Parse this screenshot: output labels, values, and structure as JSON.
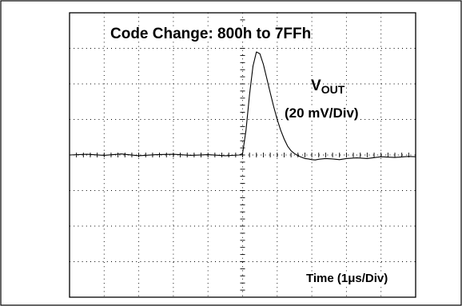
{
  "chart_data": {
    "type": "line",
    "title": "Code Change: 800h to 7FFh",
    "signal_label": "V",
    "signal_subscript": "OUT",
    "vertical_scale_label": "(20 mV/Div)",
    "horizontal_scale_label": "Time (1μs/Div)",
    "x_divisions": 10,
    "y_divisions": 8,
    "xlim": [
      0,
      10
    ],
    "ylim": [
      -4,
      4
    ],
    "units": {
      "x": "div (1 μs/Div)",
      "y": "div (20 mV/Div)"
    },
    "grid": "dotted",
    "series": [
      {
        "x": [
          0,
          0.5,
          1,
          1.5,
          2,
          2.5,
          3,
          3.5,
          4,
          4.5,
          4.9,
          5.0,
          5.1,
          5.2,
          5.3,
          5.4,
          5.5,
          5.6,
          5.7,
          5.8,
          5.9,
          6.0,
          6.1,
          6.2,
          6.3,
          6.4,
          6.5,
          6.6,
          6.7,
          6.8,
          6.9,
          7.0,
          7.1,
          7.2,
          7.4,
          7.6,
          7.8,
          8.0,
          8.3,
          8.6,
          9.0,
          9.4,
          9.8,
          10
        ],
        "y": [
          0,
          0.02,
          -0.01,
          0.03,
          -0.02,
          0.01,
          0.02,
          -0.01,
          0.01,
          -0.02,
          0,
          0.04,
          0.7,
          1.7,
          2.5,
          2.9,
          2.85,
          2.55,
          2.15,
          1.75,
          1.35,
          1.0,
          0.7,
          0.45,
          0.25,
          0.12,
          0.04,
          -0.02,
          -0.06,
          -0.1,
          -0.11,
          -0.13,
          -0.14,
          -0.12,
          -0.1,
          -0.11,
          -0.13,
          -0.1,
          -0.08,
          -0.1,
          -0.05,
          -0.07,
          -0.04,
          -0.05
        ]
      }
    ]
  }
}
